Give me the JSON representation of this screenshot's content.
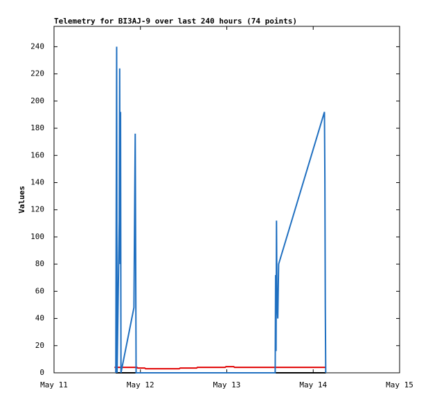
{
  "chart_data": {
    "type": "line",
    "title": "Telemetry for BI3AJ-9 over last 240 hours (74 points)",
    "y_label": "Values",
    "xlim": [
      0,
      4
    ],
    "xticks": [
      {
        "value": 0,
        "label": "May 11"
      },
      {
        "value": 1,
        "label": "May 12"
      },
      {
        "value": 2,
        "label": "May 13"
      },
      {
        "value": 3,
        "label": "May 14"
      },
      {
        "value": 4,
        "label": "May 15"
      }
    ],
    "ylim": [
      0,
      255
    ],
    "yticks": [
      0,
      20,
      40,
      60,
      80,
      100,
      120,
      140,
      160,
      180,
      200,
      220,
      240
    ],
    "series": [
      {
        "color": "#000000",
        "x": [
          0.715,
          3.145
        ],
        "values": [
          0,
          0
        ]
      },
      {
        "color": "#e00000",
        "x": [
          0.7,
          0.96,
          0.97,
          1.05,
          1.06,
          1.45,
          1.46,
          1.65,
          1.66,
          1.98,
          1.99,
          2.08,
          2.09,
          3.15
        ],
        "values": [
          4,
          4,
          3.5,
          3.5,
          3,
          3,
          3.5,
          3.5,
          4,
          4,
          4.5,
          4.5,
          4,
          4
        ]
      },
      {
        "color": "#1f6fc0",
        "x": [
          0.715,
          0.72,
          0.725,
          0.73,
          0.755,
          0.76,
          0.765,
          0.77,
          0.775,
          0.925,
          0.935,
          0.94,
          0.945,
          0.95,
          2.56,
          2.565,
          2.57,
          2.575,
          2.58,
          2.59,
          2.6,
          3.13,
          3.135,
          3.14,
          3.145
        ],
        "values": [
          0,
          120,
          240,
          0,
          112,
          224,
          80,
          192,
          0,
          48,
          136,
          176,
          88,
          0,
          0,
          72,
          16,
          112,
          56,
          40,
          80,
          192,
          144,
          48,
          0
        ]
      }
    ]
  }
}
